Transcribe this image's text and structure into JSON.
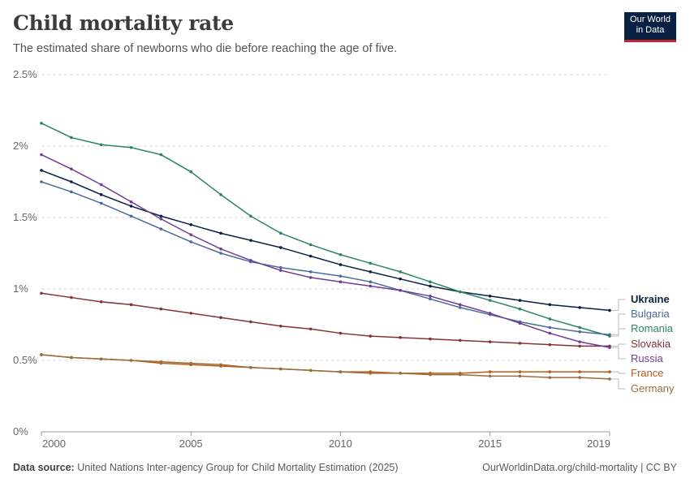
{
  "header": {
    "title": "Child mortality rate",
    "subtitle": "The estimated share of newborns who die before reaching the age of five."
  },
  "logo": {
    "line1": "Our World",
    "line2": "in Data"
  },
  "footer": {
    "source_label": "Data source:",
    "source_text": "United Nations Inter-agency Group for Child Mortality Estimation (2025)",
    "url_text": "OurWorldinData.org/child-mortality | CC BY"
  },
  "chart_data": {
    "type": "line",
    "title": "Child mortality rate",
    "x_ticks": [
      2000,
      2005,
      2010,
      2015,
      2019
    ],
    "y_ticks": [
      0,
      0.5,
      1,
      1.5,
      2,
      2.5
    ],
    "y_tick_labels": [
      "0%",
      "0.5%",
      "1%",
      "1.5%",
      "2%",
      "2.5%"
    ],
    "xlim": [
      2000,
      2019
    ],
    "ylim": [
      0,
      2.5
    ],
    "grid": "horizontal dashed",
    "legend": "right, labels at line ends",
    "x": [
      2000,
      2001,
      2002,
      2003,
      2004,
      2005,
      2006,
      2007,
      2008,
      2009,
      2010,
      2011,
      2012,
      2013,
      2014,
      2015,
      2016,
      2017,
      2018,
      2019
    ],
    "series": [
      {
        "name": "Ukraine",
        "color": "#0b2144",
        "bold": true,
        "values": [
          1.83,
          1.75,
          1.66,
          1.58,
          1.51,
          1.45,
          1.39,
          1.34,
          1.29,
          1.23,
          1.17,
          1.12,
          1.07,
          1.02,
          0.98,
          0.95,
          0.92,
          0.89,
          0.87,
          0.85
        ]
      },
      {
        "name": "Romania",
        "color": "#2b8465",
        "values": [
          2.16,
          2.06,
          2.01,
          1.99,
          1.94,
          1.82,
          1.66,
          1.51,
          1.39,
          1.31,
          1.24,
          1.18,
          1.12,
          1.05,
          0.98,
          0.92,
          0.86,
          0.79,
          0.73,
          0.67
        ]
      },
      {
        "name": "Bulgaria",
        "color": "#4c6a9c",
        "values": [
          1.75,
          1.68,
          1.6,
          1.51,
          1.42,
          1.33,
          1.25,
          1.19,
          1.15,
          1.12,
          1.09,
          1.05,
          0.99,
          0.93,
          0.87,
          0.82,
          0.77,
          0.73,
          0.7,
          0.68
        ]
      },
      {
        "name": "Slovakia",
        "color": "#883039",
        "values": [
          0.97,
          0.94,
          0.91,
          0.89,
          0.86,
          0.83,
          0.8,
          0.77,
          0.74,
          0.72,
          0.69,
          0.67,
          0.66,
          0.65,
          0.64,
          0.63,
          0.62,
          0.61,
          0.6,
          0.6
        ]
      },
      {
        "name": "Russia",
        "color": "#6d3e91",
        "values": [
          1.94,
          1.84,
          1.73,
          1.61,
          1.49,
          1.38,
          1.28,
          1.2,
          1.13,
          1.08,
          1.05,
          1.02,
          0.99,
          0.95,
          0.89,
          0.83,
          0.76,
          0.69,
          0.63,
          0.59
        ]
      },
      {
        "name": "France",
        "color": "#c05917",
        "values": [
          0.54,
          0.52,
          0.51,
          0.5,
          0.48,
          0.47,
          0.46,
          0.45,
          0.44,
          0.43,
          0.42,
          0.42,
          0.41,
          0.41,
          0.41,
          0.42,
          0.42,
          0.42,
          0.42,
          0.42
        ]
      },
      {
        "name": "Germany",
        "color": "#996d39",
        "values": [
          0.54,
          0.52,
          0.51,
          0.5,
          0.49,
          0.48,
          0.47,
          0.45,
          0.44,
          0.43,
          0.42,
          0.41,
          0.41,
          0.4,
          0.4,
          0.39,
          0.39,
          0.38,
          0.38,
          0.37
        ]
      }
    ]
  }
}
